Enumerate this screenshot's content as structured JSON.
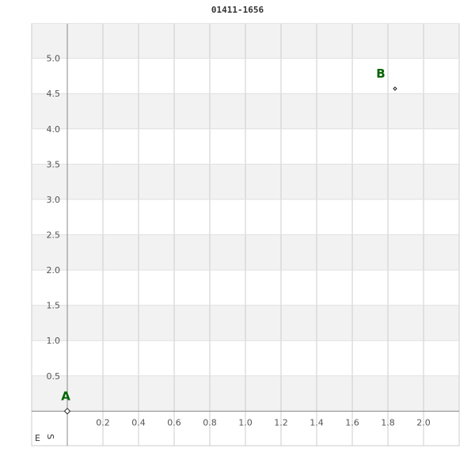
{
  "chart_data": {
    "type": "scatter",
    "title": "01411-1656",
    "xlim": [
      -0.2,
      2.2
    ],
    "ylim": [
      -0.49,
      5.49
    ],
    "x_ticks": [
      "0.2",
      "0.4",
      "0.6",
      "0.8",
      "1.0",
      "1.2",
      "1.4",
      "1.6",
      "1.8",
      "2.0"
    ],
    "y_ticks": [
      "0.5",
      "1.0",
      "1.5",
      "2.0",
      "2.5",
      "3.0",
      "3.5",
      "4.0",
      "4.5",
      "5.0"
    ],
    "grid": true,
    "corner_label": {
      "e": "E",
      "s": "S"
    },
    "points": [
      {
        "label": "A",
        "x": 0,
        "y": 0
      },
      {
        "label": "B",
        "x": 1.84,
        "y": 4.57
      }
    ],
    "colors": {
      "label": "#006400",
      "band": "#f2f2f2",
      "grid": "#cccccc",
      "axis": "#888888"
    }
  }
}
